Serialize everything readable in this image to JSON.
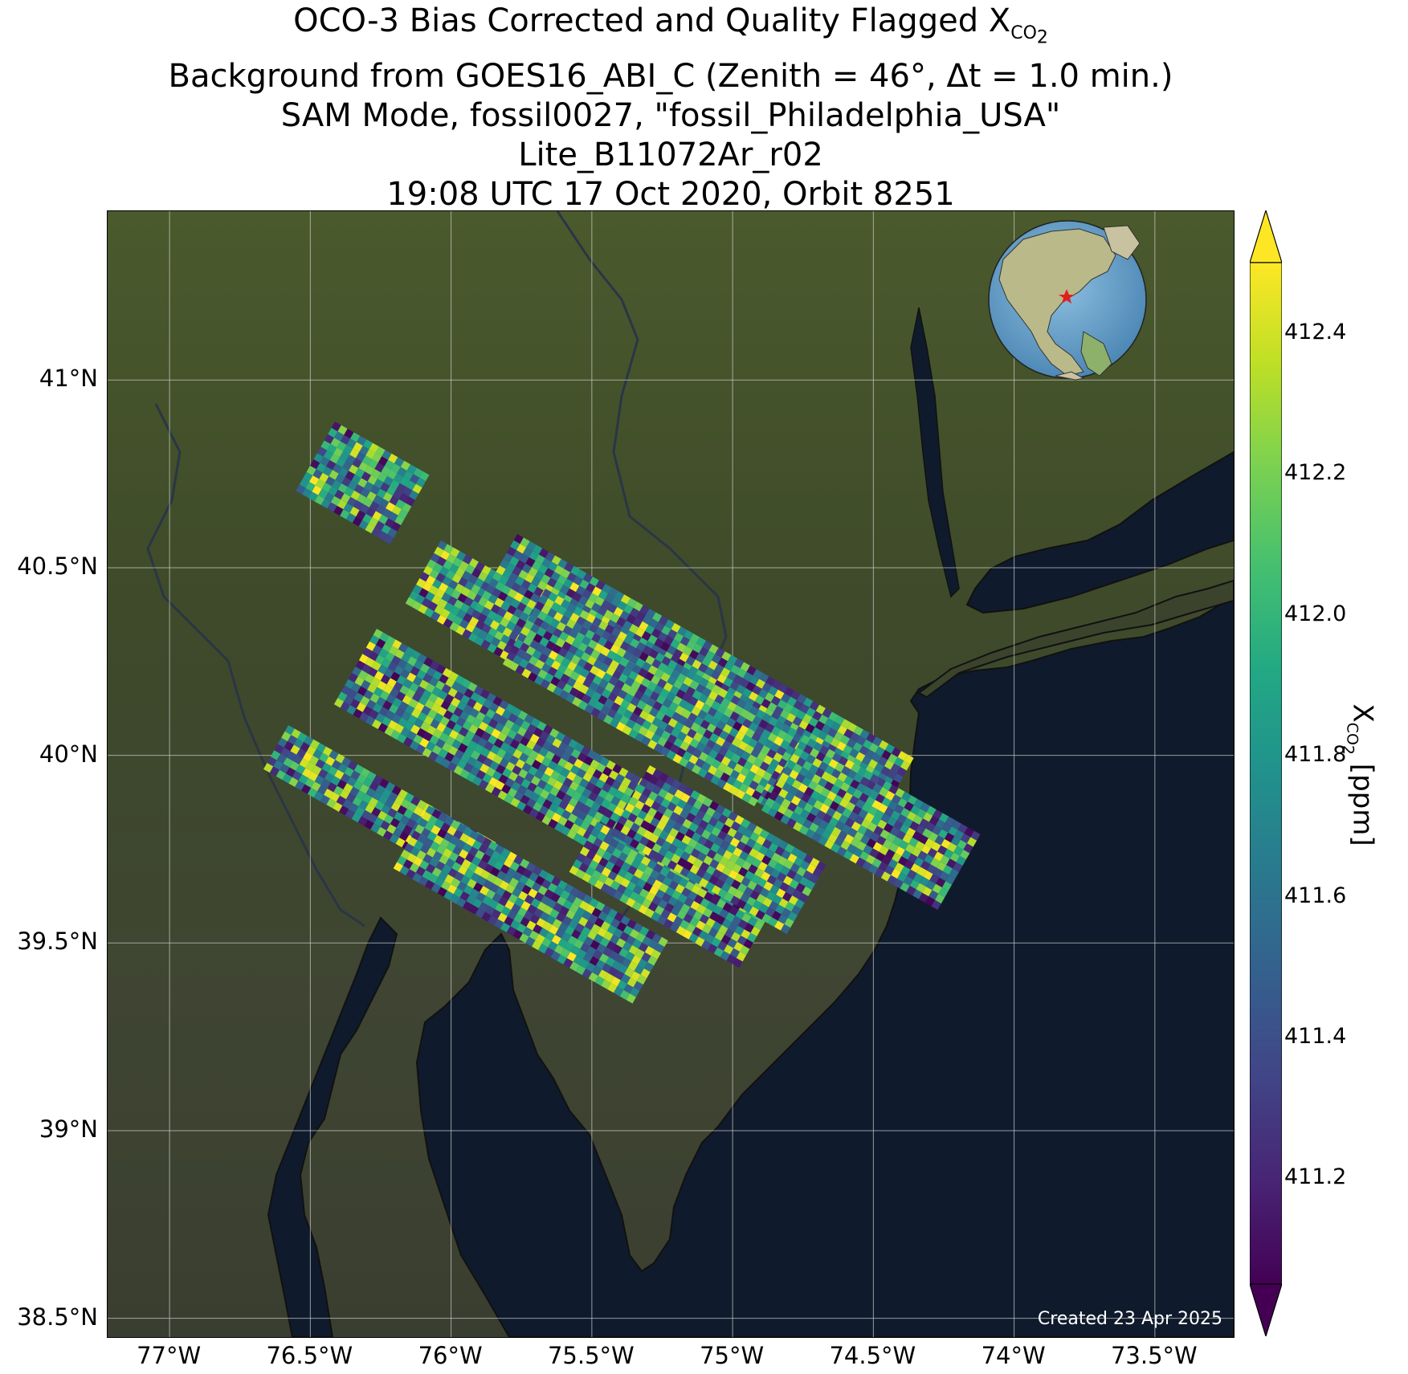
{
  "title": {
    "line1_prefix": "OCO-3 Bias Corrected and Quality Flagged X",
    "line1_sub": "CO",
    "line1_sub2": "2",
    "line2": "Background from GOES16_ABI_C (Zenith = 46°, Δt =  1.0 min.)",
    "line3": "SAM Mode, fossil0027, \"fossil_Philadelphia_USA\"",
    "line4": "Lite_B11072Ar_r02",
    "line5": "19:08 UTC 17 Oct 2020, Orbit 8251"
  },
  "map": {
    "lon_range": [
      -77.22,
      -73.22
    ],
    "lat_range": [
      38.45,
      41.45
    ],
    "lon_ticks": [
      {
        "value": -77.0,
        "label": "77°W"
      },
      {
        "value": -76.5,
        "label": "76.5°W"
      },
      {
        "value": -76.0,
        "label": "76°W"
      },
      {
        "value": -75.5,
        "label": "75.5°W"
      },
      {
        "value": -75.0,
        "label": "75°W"
      },
      {
        "value": -74.5,
        "label": "74.5°W"
      },
      {
        "value": -74.0,
        "label": "74°W"
      },
      {
        "value": -73.5,
        "label": "73.5°W"
      }
    ],
    "lat_ticks": [
      {
        "value": 41.0,
        "label": "41°N"
      },
      {
        "value": 40.5,
        "label": "40.5°N"
      },
      {
        "value": 40.0,
        "label": "40°N"
      },
      {
        "value": 39.5,
        "label": "39.5°N"
      },
      {
        "value": 39.0,
        "label": "39°N"
      },
      {
        "value": 38.5,
        "label": "38.5°N"
      }
    ],
    "credit": "Created 23 Apr 2025",
    "inset_marker": "star",
    "colors": {
      "ocean": "#0e1a2b",
      "land": "#3d4729",
      "grid": "#d0d0d0",
      "marker": "#e0201b"
    }
  },
  "colorbar": {
    "label_main": "X",
    "label_sub": "CO",
    "label_sub2": "2",
    "label_units": " [ppm]",
    "vmin": 411.05,
    "vmax": 412.5,
    "ticks": [
      "412.4",
      "412.2",
      "412.0",
      "411.8",
      "411.6",
      "411.4",
      "411.2"
    ],
    "colormap": "viridis",
    "extend": "both"
  }
}
